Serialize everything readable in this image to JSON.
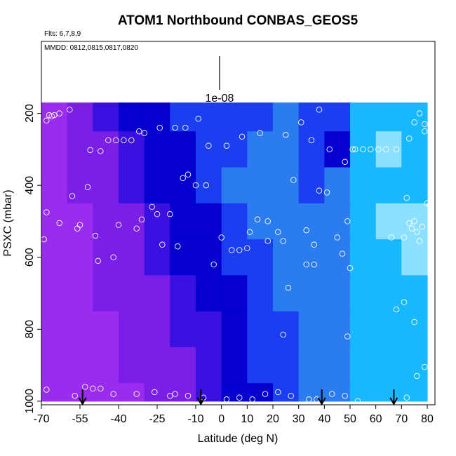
{
  "chart_data": {
    "type": "heatmap",
    "title": "ATOM1 Northbound CONBAS_GEOS5",
    "subtitle_flights": "Flts: 6,7,8,9",
    "subtitle_dates": "MMDD: 0812,0815,0817,0820",
    "xlabel": "Latitude (deg N)",
    "ylabel": "PSXC (mbar)",
    "xlim": [
      -70,
      83
    ],
    "ylim": [
      1010,
      0
    ],
    "y_reversed": true,
    "x_ticks": [
      -70,
      -55,
      -40,
      -25,
      -10,
      0,
      10,
      20,
      30,
      40,
      50,
      60,
      70,
      80
    ],
    "y_ticks": [
      200,
      400,
      600,
      800,
      1000
    ],
    "x_tick_labels": [
      "-70",
      "-55",
      "-40",
      "-25",
      "-10",
      "0",
      "10",
      "20",
      "30",
      "40",
      "50",
      "60",
      "70",
      "80"
    ],
    "y_tick_labels": [
      "200",
      "400",
      "600",
      "800",
      "1000"
    ],
    "legend_value_label": "1e-08",
    "color_scale": [
      "#9a2cf0",
      "#7a1ee8",
      "#3a10e0",
      "#0500d0",
      "#1a3ef0",
      "#2a7cf0",
      "#18b8ff",
      "#8ce0ff"
    ],
    "grid": false,
    "flight_arrows_lat": [
      -54,
      -8,
      39,
      67
    ],
    "field": {
      "lat_edges": [
        -70,
        -60,
        -50,
        -40,
        -30,
        -20,
        -10,
        0,
        10,
        20,
        30,
        40,
        50,
        60,
        70,
        80
      ],
      "p_edges": [
        170,
        250,
        350,
        450,
        550,
        650,
        750,
        850,
        950,
        1000
      ],
      "levels": [
        [
          0,
          1,
          2,
          3,
          3,
          4,
          4,
          4,
          4,
          5,
          4,
          4,
          6,
          6,
          6
        ],
        [
          0,
          1,
          1,
          2,
          3,
          3,
          4,
          4,
          5,
          5,
          4,
          3,
          6,
          7,
          6
        ],
        [
          0,
          1,
          1,
          2,
          3,
          3,
          4,
          5,
          5,
          5,
          4,
          5,
          6,
          6,
          6
        ],
        [
          0,
          0,
          1,
          1,
          2,
          3,
          3,
          4,
          5,
          5,
          5,
          5,
          6,
          7,
          7
        ],
        [
          0,
          0,
          1,
          1,
          2,
          3,
          3,
          4,
          4,
          5,
          5,
          5,
          6,
          6,
          7
        ],
        [
          0,
          0,
          1,
          1,
          1,
          2,
          3,
          3,
          4,
          5,
          5,
          5,
          6,
          6,
          6
        ],
        [
          0,
          0,
          0,
          1,
          1,
          2,
          2,
          3,
          4,
          4,
          5,
          5,
          6,
          6,
          6
        ],
        [
          0,
          0,
          0,
          1,
          1,
          1,
          2,
          3,
          4,
          4,
          5,
          5,
          6,
          6,
          6
        ],
        [
          0,
          0,
          0,
          0,
          1,
          1,
          2,
          3,
          3,
          4,
          5,
          5,
          6,
          6,
          6
        ]
      ]
    },
    "observations": [
      [
        -68,
        220
      ],
      [
        -67,
        205
      ],
      [
        -66,
        208
      ],
      [
        -65,
        205
      ],
      [
        -63,
        200
      ],
      [
        -59,
        190
      ],
      [
        -68,
        475
      ],
      [
        -69,
        550
      ],
      [
        -63,
        505
      ],
      [
        -58,
        430
      ],
      [
        -56,
        520
      ],
      [
        -55,
        510
      ],
      [
        -52,
        405
      ],
      [
        -51,
        302
      ],
      [
        -47,
        305
      ],
      [
        -44,
        275
      ],
      [
        -41,
        275
      ],
      [
        -38,
        275
      ],
      [
        -35,
        275
      ],
      [
        -32,
        250
      ],
      [
        -30,
        255
      ],
      [
        -24,
        240
      ],
      [
        -18,
        240
      ],
      [
        -14,
        240
      ],
      [
        -9,
        215
      ],
      [
        -5,
        290
      ],
      [
        2,
        290
      ],
      [
        8,
        265
      ],
      [
        15,
        255
      ],
      [
        25,
        260
      ],
      [
        31,
        225
      ],
      [
        38,
        190
      ],
      [
        35,
        275
      ],
      [
        42,
        300
      ],
      [
        48,
        335
      ],
      [
        51,
        300
      ],
      [
        52,
        300
      ],
      [
        55,
        300
      ],
      [
        58,
        300
      ],
      [
        61,
        300
      ],
      [
        64,
        300
      ],
      [
        68,
        300
      ],
      [
        73,
        270
      ],
      [
        75,
        225
      ],
      [
        77,
        200
      ],
      [
        79,
        230
      ],
      [
        79,
        250
      ],
      [
        -49,
        540
      ],
      [
        -48,
        610
      ],
      [
        -42,
        600
      ],
      [
        -40,
        510
      ],
      [
        -33,
        520
      ],
      [
        -31,
        495
      ],
      [
        -27,
        460
      ],
      [
        -25,
        480
      ],
      [
        -20,
        480
      ],
      [
        -23,
        565
      ],
      [
        -17,
        570
      ],
      [
        -15,
        380
      ],
      [
        -13,
        370
      ],
      [
        -10,
        400
      ],
      [
        -6,
        400
      ],
      [
        -3,
        620
      ],
      [
        0,
        545
      ],
      [
        4,
        580
      ],
      [
        7,
        580
      ],
      [
        10,
        575
      ],
      [
        11,
        530
      ],
      [
        14,
        495
      ],
      [
        18,
        500
      ],
      [
        18,
        555
      ],
      [
        22,
        530
      ],
      [
        24,
        555
      ],
      [
        28,
        385
      ],
      [
        33,
        525
      ],
      [
        36,
        565
      ],
      [
        38,
        415
      ],
      [
        41,
        420
      ],
      [
        45,
        545
      ],
      [
        47,
        590
      ],
      [
        50,
        630
      ],
      [
        49,
        500
      ],
      [
        66,
        545
      ],
      [
        71,
        545
      ],
      [
        72,
        435
      ],
      [
        73,
        505
      ],
      [
        74,
        520
      ],
      [
        75,
        500
      ],
      [
        76,
        530
      ],
      [
        77,
        555
      ],
      [
        80,
        450
      ],
      [
        81,
        455
      ],
      [
        78,
        515
      ],
      [
        -68,
        968
      ],
      [
        -57,
        985
      ],
      [
        -53,
        960
      ],
      [
        -50,
        965
      ],
      [
        -47,
        965
      ],
      [
        -42,
        980
      ],
      [
        -33,
        980
      ],
      [
        -26,
        975
      ],
      [
        -20,
        985
      ],
      [
        -18,
        980
      ],
      [
        -13,
        985
      ],
      [
        -7,
        990
      ],
      [
        2,
        995
      ],
      [
        7,
        990
      ],
      [
        12,
        995
      ],
      [
        17,
        980
      ],
      [
        22,
        975
      ],
      [
        27,
        985
      ],
      [
        34,
        995
      ],
      [
        37,
        995
      ],
      [
        43,
        980
      ],
      [
        48,
        985
      ],
      [
        53,
        1000
      ],
      [
        26,
        685
      ],
      [
        24,
        815
      ],
      [
        36,
        620
      ],
      [
        33,
        620
      ],
      [
        49,
        820
      ],
      [
        68,
        745
      ],
      [
        71,
        725
      ],
      [
        75,
        780
      ],
      [
        76,
        930
      ],
      [
        79,
        905
      ],
      [
        72,
        990
      ]
    ]
  }
}
